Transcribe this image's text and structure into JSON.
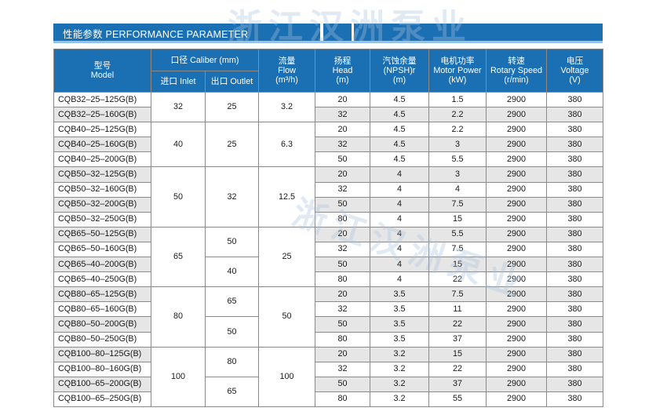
{
  "title": "性能参数 PERFORMANCE PARAMETER",
  "watermark": "浙江汉洲泵业",
  "headers": {
    "model_cn": "型号",
    "model_en": "Model",
    "caliber": "口径 Caliber (mm)",
    "inlet": "进口 Inlet",
    "outlet": "出口 Outlet",
    "flow_cn": "流量",
    "flow_en": "Flow",
    "flow_unit": "(m³/h)",
    "head_cn": "扬程",
    "head_en": "Head",
    "head_unit": "(m)",
    "npsh_cn": "汽蚀余量",
    "npsh_en": "(NPSH)r",
    "npsh_unit": "(m)",
    "power_cn": "电机功率",
    "power_en": "Motor Power",
    "power_unit": "(kW)",
    "speed_cn": "转速",
    "speed_en": "Rotary Speed",
    "speed_unit": "(r/min)",
    "voltage_cn": "电压",
    "voltage_en": "Voltage",
    "voltage_unit": "(V)"
  },
  "groups": [
    {
      "inlet": "32",
      "flow": "3.2",
      "outlets": [
        {
          "value": "25",
          "rows": [
            {
              "model": "CQB32–25–125G(B)",
              "head": "20",
              "npsh": "4.5",
              "power": "1.5",
              "speed": "2900",
              "voltage": "380"
            },
            {
              "model": "CQB32–25–160G(B)",
              "head": "32",
              "npsh": "4.5",
              "power": "2.2",
              "speed": "2900",
              "voltage": "380"
            }
          ]
        }
      ]
    },
    {
      "inlet": "40",
      "flow": "6.3",
      "outlets": [
        {
          "value": "25",
          "rows": [
            {
              "model": "CQB40–25–125G(B)",
              "head": "20",
              "npsh": "4.5",
              "power": "2.2",
              "speed": "2900",
              "voltage": "380"
            },
            {
              "model": "CQB40–25–160G(B)",
              "head": "32",
              "npsh": "4.5",
              "power": "3",
              "speed": "2900",
              "voltage": "380"
            },
            {
              "model": "CQB40–25–200G(B)",
              "head": "50",
              "npsh": "4.5",
              "power": "5.5",
              "speed": "2900",
              "voltage": "380"
            }
          ]
        }
      ]
    },
    {
      "inlet": "50",
      "flow": "12.5",
      "outlets": [
        {
          "value": "32",
          "rows": [
            {
              "model": "CQB50–32–125G(B)",
              "head": "20",
              "npsh": "4",
              "power": "3",
              "speed": "2900",
              "voltage": "380"
            },
            {
              "model": "CQB50–32–160G(B)",
              "head": "32",
              "npsh": "4",
              "power": "4",
              "speed": "2900",
              "voltage": "380"
            },
            {
              "model": "CQB50–32–200G(B)",
              "head": "50",
              "npsh": "4",
              "power": "7.5",
              "speed": "2900",
              "voltage": "380"
            },
            {
              "model": "CQB50–32–250G(B)",
              "head": "80",
              "npsh": "4",
              "power": "15",
              "speed": "2900",
              "voltage": "380"
            }
          ]
        }
      ]
    },
    {
      "inlet": "65",
      "flow": "25",
      "outlets": [
        {
          "value": "50",
          "rows": [
            {
              "model": "CQB65–50–125G(B)",
              "head": "20",
              "npsh": "4",
              "power": "5.5",
              "speed": "2900",
              "voltage": "380"
            },
            {
              "model": "CQB65–50–160G(B)",
              "head": "32",
              "npsh": "4",
              "power": "7.5",
              "speed": "2900",
              "voltage": "380"
            }
          ]
        },
        {
          "value": "40",
          "rows": [
            {
              "model": "CQB65–40–200G(B)",
              "head": "50",
              "npsh": "4",
              "power": "15",
              "speed": "2900",
              "voltage": "380"
            },
            {
              "model": "CQB65–40–250G(B)",
              "head": "80",
              "npsh": "4",
              "power": "22",
              "speed": "2900",
              "voltage": "380"
            }
          ]
        }
      ]
    },
    {
      "inlet": "80",
      "flow": "50",
      "outlets": [
        {
          "value": "65",
          "rows": [
            {
              "model": "CQB80–65–125G(B)",
              "head": "20",
              "npsh": "3.5",
              "power": "7.5",
              "speed": "2900",
              "voltage": "380"
            },
            {
              "model": "CQB80–65–160G(B)",
              "head": "32",
              "npsh": "3.5",
              "power": "11",
              "speed": "2900",
              "voltage": "380"
            }
          ]
        },
        {
          "value": "50",
          "rows": [
            {
              "model": "CQB80–50–200G(B)",
              "head": "50",
              "npsh": "3.5",
              "power": "22",
              "speed": "2900",
              "voltage": "380"
            },
            {
              "model": "CQB80–50–250G(B)",
              "head": "80",
              "npsh": "3.5",
              "power": "37",
              "speed": "2900",
              "voltage": "380"
            }
          ]
        }
      ]
    },
    {
      "inlet": "100",
      "flow": "100",
      "outlets": [
        {
          "value": "80",
          "rows": [
            {
              "model": "CQB100–80–125G(B)",
              "head": "20",
              "npsh": "3.2",
              "power": "15",
              "speed": "2900",
              "voltage": "380"
            },
            {
              "model": "CQB100–80–160G(B)",
              "head": "32",
              "npsh": "3.2",
              "power": "22",
              "speed": "2900",
              "voltage": "380"
            }
          ]
        },
        {
          "value": "65",
          "rows": [
            {
              "model": "CQB100–65–200G(B)",
              "head": "50",
              "npsh": "3.2",
              "power": "37",
              "speed": "2900",
              "voltage": "380"
            },
            {
              "model": "CQB100–65–250G(B)",
              "head": "80",
              "npsh": "3.2",
              "power": "55",
              "speed": "2900",
              "voltage": "380"
            }
          ]
        }
      ]
    }
  ]
}
